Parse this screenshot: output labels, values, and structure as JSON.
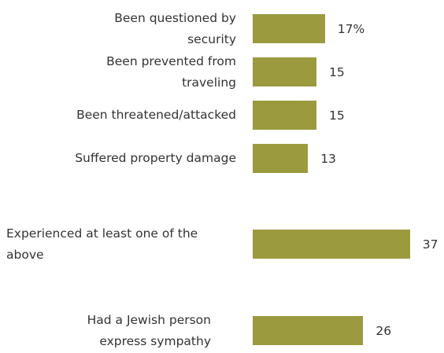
{
  "chart_data": {
    "type": "bar",
    "orientation": "horizontal",
    "color": "#9b9a3f",
    "categories": [
      "Been questioned by security",
      "Been prevented from traveling",
      "Been threatened/attacked",
      "Suffered property damage",
      "Experienced at least one of the above",
      "Had a Jewish person express sympathy"
    ],
    "values": [
      17,
      15,
      15,
      13,
      37,
      26
    ],
    "value_labels": [
      "17%",
      "15",
      "15",
      "13",
      "37",
      "26"
    ]
  }
}
